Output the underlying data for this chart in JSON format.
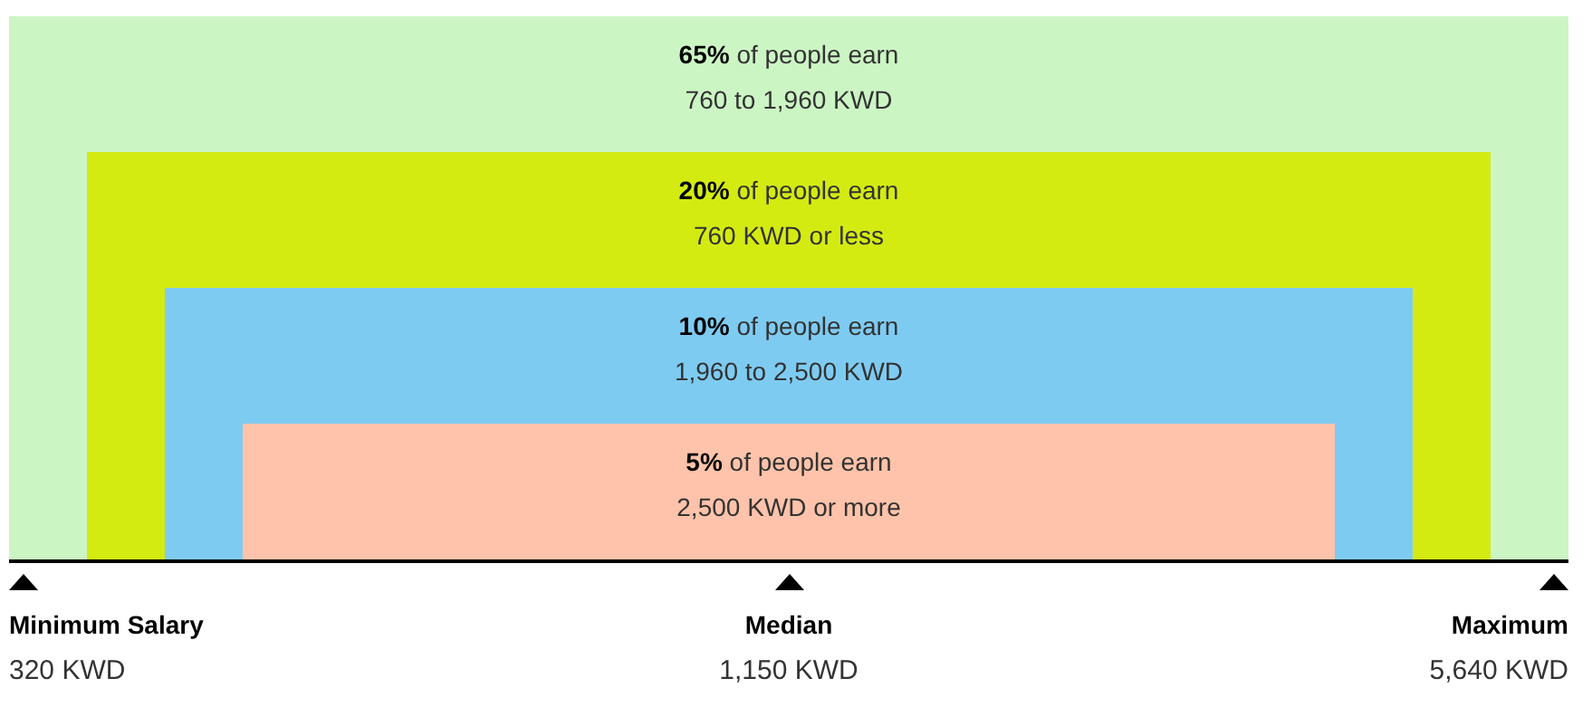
{
  "chart_data": {
    "type": "other",
    "categories": [
      "760 to 1,960 KWD",
      "760 KWD or less",
      "1,960 to 2,500 KWD",
      "2,500 KWD or more"
    ],
    "values": [
      65,
      20,
      10,
      5
    ],
    "value_labels": [
      "65%",
      "20%",
      "10%",
      "5%"
    ],
    "colors": [
      "#ccf5c4",
      "#d4eb12",
      "#7ecbf2",
      "#fec3aa"
    ],
    "annotations": [
      "of people earn",
      "Minimum Salary",
      "320 KWD",
      "Median",
      "1,150 KWD",
      "Maximum",
      "5,640 KWD"
    ]
  }
}
